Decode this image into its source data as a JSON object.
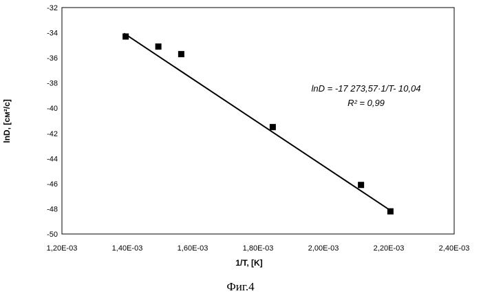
{
  "chart_data": {
    "type": "scatter",
    "xlabel": "1/T,  [K]",
    "ylabel": "lnD, [см²/с]",
    "xlim": [
      0.0012,
      0.0024
    ],
    "ylim": [
      -50,
      -32
    ],
    "x_ticks": [
      "1,20E-03",
      "1,40E-03",
      "1,60E-03",
      "1,80E-03",
      "2,00E-03",
      "2,20E-03",
      "2,40E-03"
    ],
    "y_ticks": [
      "-32",
      "-34",
      "-36",
      "-38",
      "-40",
      "-42",
      "-44",
      "-46",
      "-48",
      "-50"
    ],
    "grid": false,
    "series": [
      {
        "marker": "square",
        "x": [
          0.001395,
          0.001495,
          0.001565,
          0.001845,
          0.002115,
          0.002205
        ],
        "y": [
          -34.3,
          -35.1,
          -35.7,
          -41.5,
          -46.1,
          -48.2
        ]
      }
    ],
    "trendline": {
      "type": "linear",
      "slope": -17273.57,
      "intercept": -10.04,
      "x_range": [
        0.00139,
        0.002205
      ]
    },
    "annotations": [
      "lnD = -17 273,57·1/T- 10,04",
      "R² = 0,99"
    ],
    "colors": {
      "marker": "#000000",
      "line": "#000000",
      "plot_border": "#000000"
    }
  },
  "caption": "Фиг.4"
}
